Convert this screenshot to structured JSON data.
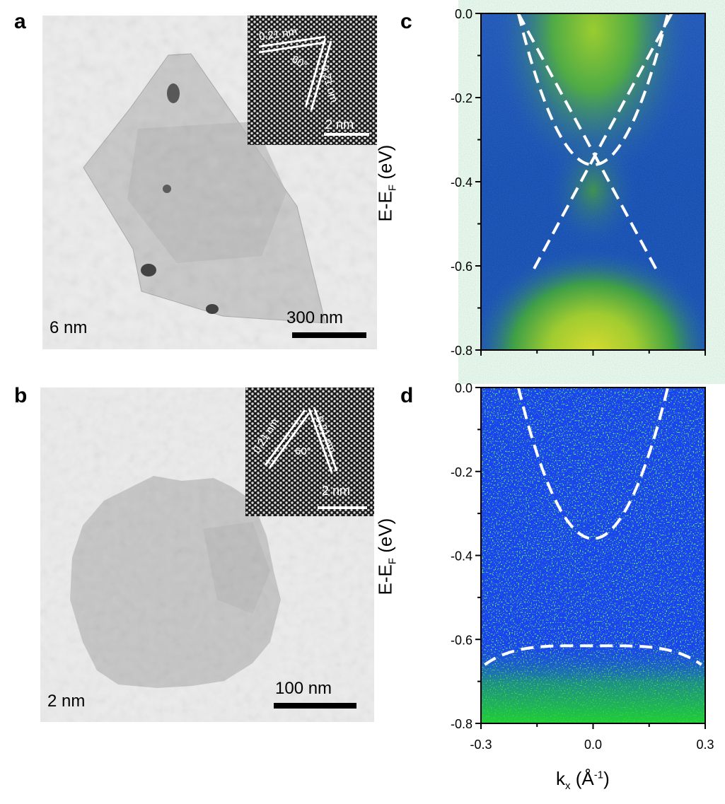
{
  "panels": {
    "a": {
      "letter": "a",
      "thickness_label": "6 nm",
      "scalebar_label": "300 nm",
      "inset": {
        "spacing_1": "0.21 nm",
        "spacing_2": "0.21 nm",
        "angle": "60°",
        "scale": "2 nm"
      }
    },
    "b": {
      "letter": "b",
      "thickness_label": "2 nm",
      "scalebar_label": "100 nm",
      "inset": {
        "spacing_1": "0.21 nm",
        "spacing_2": "0.21 nm",
        "angle": "60°",
        "scale": "2 nm"
      }
    },
    "c": {
      "letter": "c"
    },
    "d": {
      "letter": "d"
    }
  },
  "axes": {
    "ylabel_main": "E-E",
    "ylabel_sub": "F",
    "ylabel_unit": " (eV)",
    "xlabel_main": "k",
    "xlabel_sub": "x",
    "xlabel_unit_pre": " (Å",
    "xlabel_sup": "-1",
    "xlabel_unit_post": ")",
    "yticks": [
      "0.0",
      "-0.2",
      "-0.4",
      "-0.6",
      "-0.8"
    ],
    "xticks": [
      "-0.3",
      "0.0",
      "0.3"
    ]
  },
  "chart_data": [
    {
      "panel": "c",
      "type": "heatmap",
      "ylim": [
        -0.8,
        0.0
      ],
      "xlim": [
        -0.3,
        0.3
      ],
      "colormap": [
        "#0033cc",
        "#0a7a3a",
        "#2fbf2f",
        "#e8e020"
      ],
      "bands": [
        {
          "name": "",
          "kind": "parabola",
          "vertex_k": 0.0,
          "vertex_E": -0.36,
          "points": [
            [
              -0.2,
              0.0
            ],
            [
              -0.1,
              -0.27
            ],
            [
              0.0,
              -0.36
            ],
            [
              0.1,
              -0.27
            ],
            [
              0.2,
              0.0
            ]
          ]
        },
        {
          "name": "",
          "kind": "line",
          "points": [
            [
              -0.2,
              0.0
            ],
            [
              0.17,
              -0.61
            ]
          ]
        },
        {
          "name": "",
          "kind": "line",
          "points": [
            [
              0.21,
              0.0
            ],
            [
              -0.16,
              -0.61
            ]
          ]
        }
      ],
      "dirac_point_E": -0.48
    },
    {
      "panel": "d",
      "type": "heatmap",
      "ylim": [
        -0.8,
        0.0
      ],
      "xlim": [
        -0.3,
        0.3
      ],
      "colormap": [
        "#1a44ee",
        "#22dd22"
      ],
      "bands": [
        {
          "name": "",
          "kind": "parabola",
          "vertex_k": 0.0,
          "vertex_E": -0.36,
          "points": [
            [
              -0.2,
              0.0
            ],
            [
              -0.1,
              -0.27
            ],
            [
              0.0,
              -0.36
            ],
            [
              0.1,
              -0.27
            ],
            [
              0.2,
              0.0
            ]
          ]
        },
        {
          "name": "",
          "kind": "arc",
          "points": [
            [
              -0.29,
              -0.66
            ],
            [
              -0.15,
              -0.625
            ],
            [
              0.0,
              -0.615
            ],
            [
              0.15,
              -0.625
            ],
            [
              0.29,
              -0.66
            ]
          ]
        }
      ]
    }
  ]
}
